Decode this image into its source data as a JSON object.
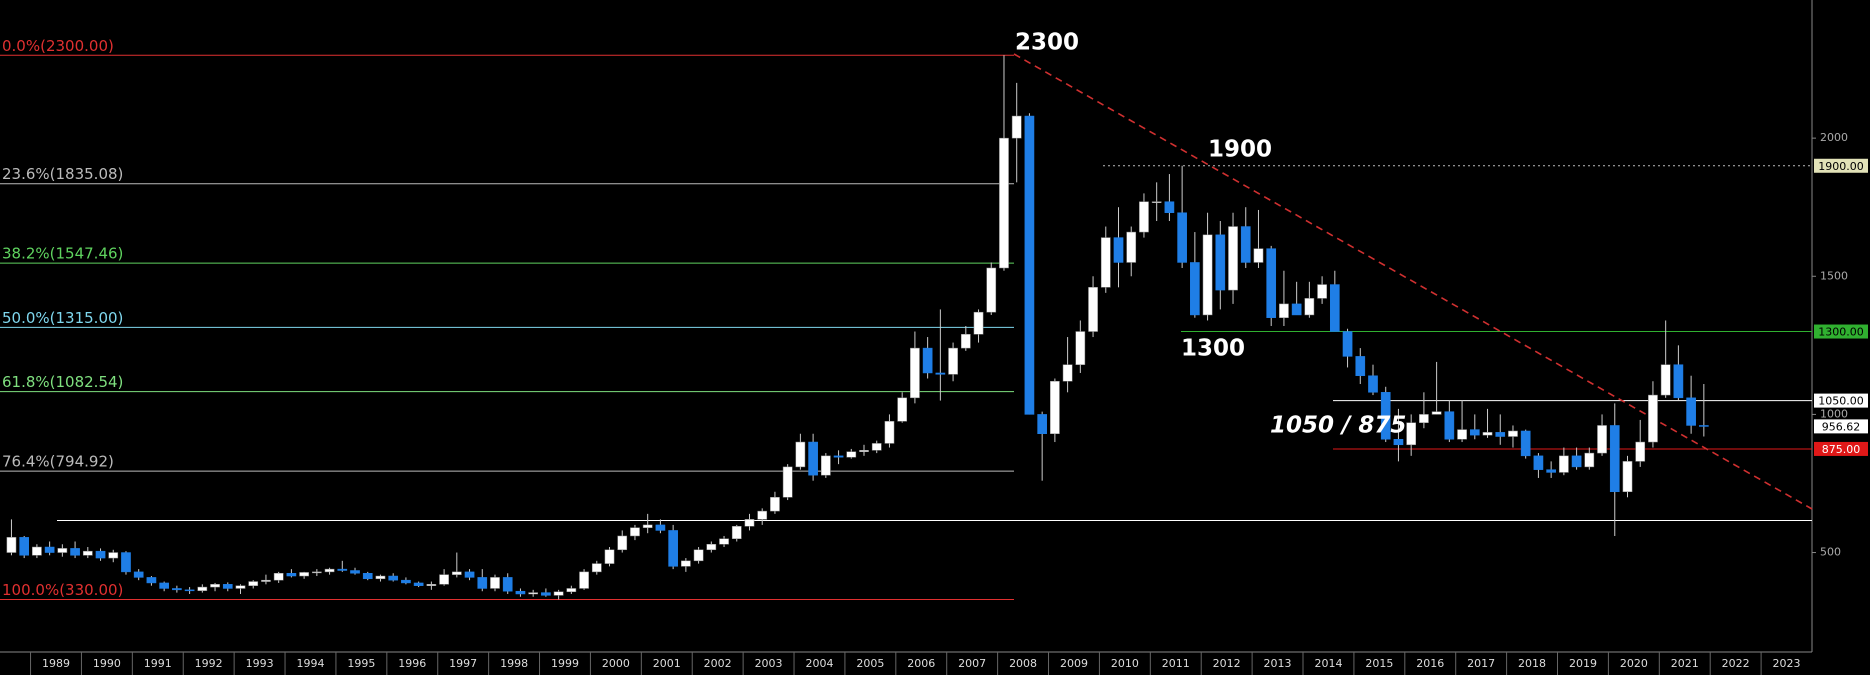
{
  "chart_data": {
    "type": "candlestick",
    "x": [
      1988.5,
      1988.75,
      1989,
      1989.25,
      1989.5,
      1989.75,
      1990,
      1990.25,
      1990.5,
      1990.75,
      1991,
      1991.25,
      1991.5,
      1991.75,
      1992,
      1992.25,
      1992.5,
      1992.75,
      1993,
      1993.25,
      1993.5,
      1993.75,
      1994,
      1994.25,
      1994.5,
      1994.75,
      1995,
      1995.25,
      1995.5,
      1995.75,
      1996,
      1996.25,
      1996.5,
      1996.75,
      1997,
      1997.25,
      1997.5,
      1997.75,
      1998,
      1998.25,
      1998.5,
      1998.75,
      1999,
      1999.25,
      1999.5,
      1999.75,
      2000,
      2000.25,
      2000.5,
      2000.75,
      2001,
      2001.25,
      2001.5,
      2001.75,
      2002,
      2002.25,
      2002.5,
      2002.75,
      2003,
      2003.25,
      2003.5,
      2003.75,
      2004,
      2004.25,
      2004.5,
      2004.75,
      2005,
      2005.25,
      2005.5,
      2005.75,
      2006,
      2006.25,
      2006.5,
      2006.75,
      2007,
      2007.25,
      2007.5,
      2007.75,
      2008,
      2008.25,
      2008.5,
      2008.75,
      2009,
      2009.25,
      2009.5,
      2009.75,
      2010,
      2010.25,
      2010.5,
      2010.75,
      2011,
      2011.25,
      2011.5,
      2011.75,
      2012,
      2012.25,
      2012.5,
      2012.75,
      2013,
      2013.25,
      2013.5,
      2013.75,
      2014,
      2014.25,
      2014.5,
      2014.75,
      2015,
      2015.25,
      2015.5,
      2015.75,
      2016,
      2016.25,
      2016.5,
      2016.75,
      2017,
      2017.25,
      2017.5,
      2017.75,
      2018,
      2018.25,
      2018.5,
      2018.75,
      2019,
      2019.25,
      2019.5,
      2019.75,
      2020,
      2020.25,
      2020.5,
      2020.75,
      2021,
      2021.25,
      2021.5,
      2021.75
    ],
    "open": [
      500,
      555,
      490,
      520,
      500,
      515,
      490,
      505,
      480,
      500,
      430,
      410,
      390,
      370,
      365,
      362,
      375,
      385,
      370,
      380,
      395,
      400,
      425,
      415,
      428,
      430,
      440,
      435,
      425,
      405,
      415,
      400,
      390,
      380,
      385,
      420,
      430,
      410,
      370,
      410,
      360,
      350,
      355,
      345,
      358,
      370,
      430,
      460,
      510,
      560,
      590,
      600,
      580,
      450,
      470,
      510,
      530,
      550,
      595,
      620,
      650,
      700,
      810,
      900,
      780,
      850,
      845,
      865,
      870,
      895,
      975,
      1060,
      1240,
      1150,
      1145,
      1240,
      1290,
      1370,
      1530,
      2000,
      2080,
      1000,
      930,
      1120,
      1180,
      1300,
      1460,
      1640,
      1550,
      1660,
      1770,
      1770,
      1730,
      1550,
      1360,
      1650,
      1450,
      1680,
      1550,
      1600,
      1350,
      1400,
      1360,
      1420,
      1470,
      1300,
      1210,
      1140,
      1080,
      910,
      890,
      970,
      1000,
      1010,
      910,
      945,
      925,
      935,
      920,
      940,
      850,
      800,
      790,
      850,
      810,
      860,
      960,
      720,
      830,
      900,
      1070,
      1180,
      1060,
      960
    ],
    "high": [
      620,
      560,
      530,
      540,
      530,
      540,
      520,
      515,
      510,
      505,
      440,
      415,
      395,
      380,
      375,
      385,
      390,
      392,
      385,
      400,
      420,
      430,
      440,
      430,
      440,
      445,
      470,
      445,
      430,
      420,
      425,
      410,
      395,
      395,
      440,
      500,
      440,
      440,
      420,
      425,
      370,
      365,
      370,
      365,
      380,
      440,
      470,
      520,
      580,
      600,
      640,
      620,
      600,
      480,
      520,
      540,
      560,
      600,
      640,
      660,
      720,
      820,
      930,
      930,
      860,
      870,
      875,
      890,
      905,
      1000,
      1080,
      1300,
      1280,
      1380,
      1260,
      1320,
      1380,
      1550,
      2300,
      2200,
      2090,
      1010,
      1130,
      1280,
      1340,
      1500,
      1680,
      1750,
      1680,
      1800,
      1840,
      1870,
      1900,
      1660,
      1730,
      1700,
      1730,
      1750,
      1740,
      1610,
      1520,
      1480,
      1480,
      1500,
      1520,
      1310,
      1240,
      1180,
      1100,
      1020,
      1000,
      1080,
      1190,
      1050,
      1050,
      1000,
      1020,
      1000,
      960,
      945,
      860,
      830,
      880,
      880,
      880,
      1000,
      1040,
      850,
      980,
      1120,
      1340,
      1250,
      1140,
      1110
    ],
    "low": [
      490,
      480,
      480,
      490,
      485,
      480,
      480,
      470,
      465,
      420,
      400,
      380,
      360,
      355,
      350,
      355,
      360,
      360,
      350,
      370,
      385,
      390,
      410,
      405,
      415,
      420,
      430,
      420,
      400,
      395,
      395,
      385,
      375,
      365,
      380,
      410,
      400,
      360,
      360,
      350,
      340,
      340,
      340,
      330,
      350,
      365,
      420,
      450,
      500,
      545,
      570,
      570,
      440,
      430,
      460,
      500,
      520,
      540,
      580,
      600,
      640,
      690,
      800,
      760,
      770,
      820,
      840,
      850,
      860,
      880,
      970,
      1040,
      1130,
      1050,
      1120,
      1230,
      1260,
      1360,
      1520,
      1840,
      1000,
      760,
      900,
      1080,
      1150,
      1280,
      1440,
      1460,
      1500,
      1640,
      1700,
      1700,
      1530,
      1350,
      1340,
      1380,
      1400,
      1530,
      1530,
      1320,
      1320,
      1360,
      1350,
      1400,
      1300,
      1170,
      1110,
      1070,
      900,
      830,
      850,
      950,
      1000,
      900,
      900,
      910,
      915,
      890,
      880,
      840,
      770,
      770,
      780,
      800,
      800,
      850,
      560,
      700,
      810,
      880,
      1060,
      1050,
      930,
      920
    ],
    "close": [
      555,
      490,
      520,
      500,
      515,
      490,
      505,
      480,
      500,
      430,
      410,
      390,
      370,
      365,
      362,
      375,
      385,
      370,
      380,
      395,
      400,
      425,
      415,
      428,
      430,
      440,
      435,
      425,
      405,
      415,
      400,
      390,
      380,
      385,
      420,
      430,
      410,
      370,
      410,
      360,
      350,
      355,
      345,
      358,
      370,
      430,
      460,
      510,
      560,
      590,
      600,
      580,
      450,
      470,
      510,
      530,
      550,
      595,
      620,
      650,
      700,
      810,
      900,
      780,
      850,
      845,
      865,
      870,
      895,
      975,
      1060,
      1240,
      1150,
      1145,
      1240,
      1290,
      1370,
      1530,
      2000,
      2080,
      1000,
      930,
      1120,
      1180,
      1300,
      1460,
      1640,
      1550,
      1660,
      1770,
      1770,
      1730,
      1550,
      1360,
      1650,
      1450,
      1680,
      1550,
      1600,
      1350,
      1400,
      1360,
      1420,
      1470,
      1300,
      1210,
      1140,
      1080,
      910,
      890,
      970,
      1000,
      1010,
      910,
      945,
      925,
      935,
      920,
      940,
      850,
      800,
      790,
      850,
      810,
      860,
      960,
      720,
      830,
      900,
      1070,
      1180,
      1060,
      960,
      956.62
    ],
    "up_color": "#ffffff",
    "down_color": "#1f7ee6",
    "xlim": [
      1988.4,
      2024
    ],
    "ylim": [
      140,
      2500
    ],
    "xticks": [
      {
        "value": 1989.5,
        "label": "1989"
      },
      {
        "value": 1990.5,
        "label": "1990"
      },
      {
        "value": 1991.5,
        "label": "1991"
      },
      {
        "value": 1992.5,
        "label": "1992"
      },
      {
        "value": 1993.5,
        "label": "1993"
      },
      {
        "value": 1994.5,
        "label": "1994"
      },
      {
        "value": 1995.5,
        "label": "1995"
      },
      {
        "value": 1996.5,
        "label": "1996"
      },
      {
        "value": 1997.5,
        "label": "1997"
      },
      {
        "value": 1998.5,
        "label": "1998"
      },
      {
        "value": 1999.5,
        "label": "1999"
      },
      {
        "value": 2000.5,
        "label": "2000"
      },
      {
        "value": 2001.5,
        "label": "2001"
      },
      {
        "value": 2002.5,
        "label": "2002"
      },
      {
        "value": 2003.5,
        "label": "2003"
      },
      {
        "value": 2004.5,
        "label": "2004"
      },
      {
        "value": 2005.5,
        "label": "2005"
      },
      {
        "value": 2006.5,
        "label": "2006"
      },
      {
        "value": 2007.5,
        "label": "2007"
      },
      {
        "value": 2008.5,
        "label": "2008"
      },
      {
        "value": 2009.5,
        "label": "2009"
      },
      {
        "value": 2010.5,
        "label": "2010"
      },
      {
        "value": 2011.5,
        "label": "2011"
      },
      {
        "value": 2012.5,
        "label": "2012"
      },
      {
        "value": 2013.5,
        "label": "2013"
      },
      {
        "value": 2014.5,
        "label": "2014"
      },
      {
        "value": 2015.5,
        "label": "2015"
      },
      {
        "value": 2016.5,
        "label": "2016"
      },
      {
        "value": 2017.5,
        "label": "2017"
      },
      {
        "value": 2018.5,
        "label": "2018"
      },
      {
        "value": 2019.5,
        "label": "2019"
      },
      {
        "value": 2020.5,
        "label": "2020"
      },
      {
        "value": 2021.5,
        "label": "2021"
      },
      {
        "value": 2022.5,
        "label": "2022"
      },
      {
        "value": 2023.5,
        "label": "2023"
      }
    ],
    "yticks": [
      500,
      1000,
      1500,
      2000
    ],
    "fib_levels": [
      {
        "label": "0.0%(2300.00)",
        "value": 2300,
        "color": "#e03030"
      },
      {
        "label": "23.6%(1835.08)",
        "value": 1835.08,
        "color": "#bbbbbb"
      },
      {
        "label": "38.2%(1547.46)",
        "value": 1547.46,
        "color": "#5fd35f"
      },
      {
        "label": "50.0%(1315.00)",
        "value": 1315,
        "color": "#7fd7ee"
      },
      {
        "label": "61.8%(1082.54)",
        "value": 1082.54,
        "color": "#7fe07f"
      },
      {
        "label": "76.4%(794.92)",
        "value": 794.92,
        "color": "#bbbbbb"
      },
      {
        "label": "100.0%(330.00)",
        "value": 330,
        "color": "#e03030"
      }
    ],
    "levels": [
      {
        "value": 1900,
        "label": "1900.00",
        "color": "#bbbbbb",
        "dotted": true,
        "tag_color": "#e2e2b8",
        "tag_text": "#000000"
      },
      {
        "value": 1300,
        "label": "1300.00",
        "color": "#30b030",
        "tag_color": "#30b030",
        "tag_text": "#000000"
      },
      {
        "value": 1050,
        "label": "1050.00",
        "color": "#ffffff",
        "tag_color": "#ffffff",
        "tag_text": "#000000"
      },
      {
        "value": 875,
        "label": "875.00",
        "color": "#e01818",
        "tag_color": "#e01818",
        "tag_text": "#ffffff"
      },
      {
        "value": 616,
        "color": "#ffffff"
      }
    ],
    "trendline_color": "#d03030",
    "annotations": [
      "2300",
      "1900",
      "1300",
      "1050 / 875"
    ]
  }
}
